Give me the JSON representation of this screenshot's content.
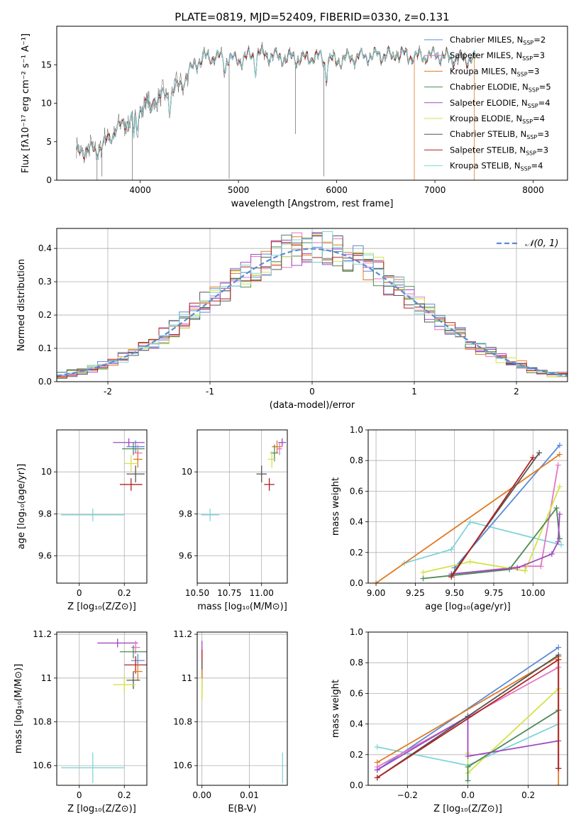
{
  "figure": {
    "title": "PLATE=0819, MJD=52409, FIBERID=0330, z=0.131"
  },
  "chart_data": [
    {
      "id": "spectrum",
      "type": "line",
      "title": "PLATE=0819, MJD=52409, FIBERID=0330, z=0.131",
      "xlabel": "wavelength [Angstrom, rest frame]",
      "ylabel": "Flux [fλ10⁻¹⁷ erg cm⁻² s⁻¹ A⁻¹]",
      "xlim": [
        3150,
        8350
      ],
      "ylim": [
        0,
        20
      ],
      "xticks": [
        4000,
        5000,
        6000,
        7000,
        8000
      ],
      "yticks": [
        0,
        5,
        10,
        15
      ],
      "grid": false,
      "legend_position": "top-right",
      "continuum": {
        "x": [
          3350,
          3450,
          3550,
          3650,
          3750,
          3850,
          3950,
          4050,
          4150,
          4250,
          4350,
          4450,
          4550,
          4650,
          4800,
          5000,
          5200,
          5400,
          5600,
          5800,
          6000,
          6200,
          6400,
          6600,
          6800,
          7000,
          7200,
          7400
        ],
        "y": [
          3.5,
          4.0,
          3.8,
          5.0,
          6.5,
          7.5,
          8.5,
          10.0,
          10.5,
          11.0,
          11.8,
          13.0,
          15.0,
          16.0,
          16.0,
          15.5,
          16.5,
          16.0,
          15.8,
          16.0,
          15.5,
          16.0,
          16.2,
          16.5,
          16.0,
          16.3,
          15.8,
          15.7
        ]
      },
      "series": [
        {
          "name": "Chabrier MILES, N_SSP=2",
          "color": "#5b8ad6"
        },
        {
          "name": "Salpeter MILES, N_SSP=3",
          "color": "#e377c2"
        },
        {
          "name": "Kroupa MILES, N_SSP=3",
          "color": "#e07b22"
        },
        {
          "name": "Chabrier ELODIE, N_SSP=5",
          "color": "#4d8a55"
        },
        {
          "name": "Salpeter ELODIE, N_SSP=4",
          "color": "#a04ac0"
        },
        {
          "name": "Kroupa ELODIE, N_SSP=4",
          "color": "#d6e14a"
        },
        {
          "name": "Chabrier STELIB, N_SSP=3",
          "color": "#555555"
        },
        {
          "name": "Salpeter STELIB, N_SSP=3",
          "color": "#b22222"
        },
        {
          "name": "Kroupa STELIB, N_SSP=4",
          "color": "#7fd4d8"
        }
      ]
    },
    {
      "id": "residuals",
      "type": "histogram",
      "xlabel": "(data-model)/error",
      "ylabel": "Normed distribution",
      "xlim": [
        -2.5,
        2.5
      ],
      "ylim": [
        0,
        0.46
      ],
      "xticks": [
        -2,
        -1,
        0,
        1,
        2
      ],
      "yticks": [
        0.0,
        0.1,
        0.2,
        0.3,
        0.4
      ],
      "grid": true,
      "bin_width": 0.1,
      "reference_curve": {
        "name": "𝒩(0, 1)",
        "mean": 0,
        "sigma": 1,
        "color": "#5b8ad6"
      },
      "legend_position": "top-right"
    },
    {
      "id": "age_vs_Z",
      "type": "scatter",
      "xlabel": "Z [log₁₀(Z/Z⊙)]",
      "ylabel": "age  [log₁₀(age/yr)]",
      "xlim": [
        -0.1,
        0.3
      ],
      "ylim": [
        9.47,
        10.2
      ],
      "xticks": [
        0.0,
        0.2
      ],
      "yticks": [
        9.6,
        9.8,
        10.0
      ],
      "grid": true,
      "points": [
        {
          "x": 0.06,
          "y": 9.795,
          "xerr": 0.14,
          "yerr": 0.03,
          "color": "#7fd4d8"
        },
        {
          "x": 0.22,
          "y": 10.14,
          "xerr": 0.07,
          "yerr": 0.02,
          "color": "#a04ac0"
        },
        {
          "x": 0.25,
          "y": 10.12,
          "xerr": 0.04,
          "yerr": 0.03,
          "color": "#5b8ad6"
        },
        {
          "x": 0.24,
          "y": 10.11,
          "xerr": 0.05,
          "yerr": 0.03,
          "color": "#4d8a55"
        },
        {
          "x": 0.26,
          "y": 10.09,
          "xerr": 0.02,
          "yerr": 0.04,
          "color": "#e377c2"
        },
        {
          "x": 0.26,
          "y": 10.06,
          "xerr": 0.02,
          "yerr": 0.04,
          "color": "#e07b22"
        },
        {
          "x": 0.23,
          "y": 10.04,
          "xerr": 0.03,
          "yerr": 0.04,
          "color": "#d6e14a"
        },
        {
          "x": 0.25,
          "y": 9.99,
          "xerr": 0.04,
          "yerr": 0.04,
          "color": "#555555"
        },
        {
          "x": 0.23,
          "y": 9.94,
          "xerr": 0.05,
          "yerr": 0.03,
          "color": "#b22222"
        }
      ]
    },
    {
      "id": "age_vs_mass",
      "type": "scatter",
      "xlabel": "mass [log₁₀(M/M⊙)]",
      "xlim": [
        10.5,
        11.2
      ],
      "ylim": [
        9.47,
        10.2
      ],
      "xticks": [
        10.5,
        10.75,
        11.0
      ],
      "xticklabels": [
        "10.50",
        "10.75",
        "11.00"
      ],
      "yticks": [
        9.6,
        9.8,
        10.0
      ],
      "grid": true,
      "points": [
        {
          "x": 10.6,
          "y": 9.795,
          "xerr": 0.07,
          "yerr": 0.03,
          "color": "#7fd4d8"
        },
        {
          "x": 11.16,
          "y": 10.14,
          "xerr": 0.03,
          "yerr": 0.02,
          "color": "#a04ac0"
        },
        {
          "x": 11.12,
          "y": 10.12,
          "xerr": 0.04,
          "yerr": 0.03,
          "color": "#e07b22"
        },
        {
          "x": 11.14,
          "y": 10.11,
          "xerr": 0.02,
          "yerr": 0.03,
          "color": "#e377c2"
        },
        {
          "x": 11.1,
          "y": 10.09,
          "xerr": 0.03,
          "yerr": 0.04,
          "color": "#4d8a55"
        },
        {
          "x": 11.08,
          "y": 10.06,
          "xerr": 0.03,
          "yerr": 0.04,
          "color": "#d6e14a"
        },
        {
          "x": 11.0,
          "y": 9.99,
          "xerr": 0.04,
          "yerr": 0.04,
          "color": "#555555"
        },
        {
          "x": 11.06,
          "y": 9.94,
          "xerr": 0.04,
          "yerr": 0.03,
          "color": "#b22222"
        }
      ]
    },
    {
      "id": "weight_vs_age",
      "type": "line",
      "xlabel": "age  [log₁₀(age/yr)]",
      "ylabel": "mass weight",
      "xlim": [
        8.95,
        10.22
      ],
      "ylim": [
        0,
        1
      ],
      "xticks": [
        9.0,
        9.25,
        9.5,
        9.75,
        10.0
      ],
      "xticklabels": [
        "9.00",
        "9.25",
        "9.50",
        "9.75",
        "10.00"
      ],
      "yticks": [
        0.0,
        0.2,
        0.4,
        0.6,
        0.8,
        1.0
      ],
      "grid": true,
      "series": [
        {
          "color": "#7fd4d8",
          "x": [
            9.18,
            9.48,
            9.6,
            10.18
          ],
          "y": [
            0.13,
            0.22,
            0.4,
            0.25
          ]
        },
        {
          "color": "#5b8ad6",
          "x": [
            9.5,
            10.17
          ],
          "y": [
            0.1,
            0.9
          ]
        },
        {
          "color": "#e07b22",
          "x": [
            9.0,
            10.17
          ],
          "y": [
            0.0,
            0.84
          ]
        },
        {
          "color": "#e377c2",
          "x": [
            9.5,
            9.95,
            10.05,
            10.16
          ],
          "y": [
            0.06,
            0.11,
            0.11,
            0.77
          ]
        },
        {
          "color": "#d6e14a",
          "x": [
            9.3,
            9.6,
            9.95,
            10.17
          ],
          "y": [
            0.07,
            0.14,
            0.08,
            0.63
          ]
        },
        {
          "color": "#4d8a55",
          "x": [
            9.3,
            9.85,
            10.15,
            10.17
          ],
          "y": [
            0.03,
            0.09,
            0.49,
            0.29
          ]
        },
        {
          "color": "#a04ac0",
          "x": [
            9.48,
            9.9,
            10.12,
            10.16,
            10.17
          ],
          "y": [
            0.06,
            0.1,
            0.19,
            0.27,
            0.45
          ]
        },
        {
          "color": "#555555",
          "x": [
            9.48,
            10.04
          ],
          "y": [
            0.05,
            0.85
          ]
        },
        {
          "color": "#b22222",
          "x": [
            9.48,
            10.0
          ],
          "y": [
            0.04,
            0.82
          ]
        }
      ]
    },
    {
      "id": "mass_vs_Z",
      "type": "scatter",
      "xlabel": "Z [log₁₀(Z/Z⊙)]",
      "ylabel": "mass [log₁₀(M/M⊙)]",
      "xlim": [
        -0.1,
        0.3
      ],
      "ylim": [
        10.51,
        11.21
      ],
      "xticks": [
        0.0,
        0.2
      ],
      "yticks": [
        10.6,
        10.8,
        11.0,
        11.2
      ],
      "grid": true,
      "points": [
        {
          "x": 0.06,
          "y": 10.59,
          "xerr": 0.14,
          "yerr": 0.07,
          "color": "#7fd4d8"
        },
        {
          "x": 0.17,
          "y": 11.16,
          "xerr": 0.09,
          "yerr": 0.02,
          "color": "#a04ac0"
        },
        {
          "x": 0.25,
          "y": 11.14,
          "xerr": 0.02,
          "yerr": 0.03,
          "color": "#e377c2"
        },
        {
          "x": 0.24,
          "y": 11.12,
          "xerr": 0.06,
          "yerr": 0.03,
          "color": "#4d8a55"
        },
        {
          "x": 0.26,
          "y": 11.08,
          "xerr": 0.03,
          "yerr": 0.03,
          "color": "#5b8ad6"
        },
        {
          "x": 0.25,
          "y": 11.06,
          "xerr": 0.05,
          "yerr": 0.04,
          "color": "#b22222"
        },
        {
          "x": 0.26,
          "y": 11.03,
          "xerr": 0.02,
          "yerr": 0.04,
          "color": "#e07b22"
        },
        {
          "x": 0.24,
          "y": 10.99,
          "xerr": 0.03,
          "yerr": 0.04,
          "color": "#555555"
        },
        {
          "x": 0.2,
          "y": 10.97,
          "xerr": 0.05,
          "yerr": 0.04,
          "color": "#d6e14a"
        }
      ]
    },
    {
      "id": "mass_vs_EBV",
      "type": "scatter",
      "xlabel": "E(B-V)",
      "xlim": [
        -0.001,
        0.018
      ],
      "ylim": [
        10.51,
        11.21
      ],
      "xticks": [
        0.0,
        0.01
      ],
      "xticklabels": [
        "0.00",
        "0.01"
      ],
      "yticks": [
        10.6,
        10.8,
        11.0,
        11.2
      ],
      "grid": true,
      "points": [
        {
          "x": 0.017,
          "y": 10.59,
          "xerr": 0.0,
          "yerr": 0.07,
          "color": "#7fd4d8"
        },
        {
          "x": 0.0,
          "y": 11.12,
          "xerr": 0.0,
          "yerr": 0.05,
          "color": "#a04ac0"
        },
        {
          "x": 0.0,
          "y": 11.06,
          "xerr": 0.0,
          "yerr": 0.07,
          "color": "#b22222"
        },
        {
          "x": 0.0,
          "y": 11.02,
          "xerr": 0.0,
          "yerr": 0.06,
          "color": "#555555"
        },
        {
          "x": 0.0,
          "y": 10.97,
          "xerr": 0.0,
          "yerr": 0.07,
          "color": "#e07b22"
        },
        {
          "x": 0.0,
          "y": 10.95,
          "xerr": 0.0,
          "yerr": 0.05,
          "color": "#d6e14a"
        }
      ]
    },
    {
      "id": "weight_vs_Z",
      "type": "line",
      "xlabel": "Z [log₁₀(Z/Z⊙)]",
      "ylabel": "mass weight",
      "xlim": [
        -0.33,
        0.33
      ],
      "ylim": [
        0,
        1
      ],
      "xticks": [
        -0.2,
        0.0,
        0.2
      ],
      "xticklabels": [
        "−0.2",
        "0.0",
        "0.2"
      ],
      "yticks": [
        0.0,
        0.2,
        0.4,
        0.6,
        0.8,
        1.0
      ],
      "grid": true,
      "series": [
        {
          "color": "#7fd4d8",
          "x": [
            -0.3,
            0.0,
            0.3
          ],
          "y": [
            0.25,
            0.13,
            0.4
          ]
        },
        {
          "color": "#5b8ad6",
          "x": [
            -0.3,
            0.3
          ],
          "y": [
            0.1,
            0.9
          ]
        },
        {
          "color": "#e07b22",
          "x": [
            -0.3,
            0.3,
            0.3
          ],
          "y": [
            0.15,
            0.84,
            0.0
          ]
        },
        {
          "color": "#e377c2",
          "x": [
            -0.3,
            0.3
          ],
          "y": [
            0.12,
            0.77
          ]
        },
        {
          "color": "#d6e14a",
          "x": [
            0.0,
            0.0,
            0.3
          ],
          "y": [
            0.21,
            0.08,
            0.63
          ]
        },
        {
          "color": "#4d8a55",
          "x": [
            0.0,
            0.0,
            0.3
          ],
          "y": [
            0.03,
            0.12,
            0.49
          ]
        },
        {
          "color": "#a04ac0",
          "x": [
            -0.3,
            0.0,
            0.0,
            0.3
          ],
          "y": [
            0.1,
            0.45,
            0.19,
            0.29
          ]
        },
        {
          "color": "#555555",
          "x": [
            -0.3,
            0.0,
            0.3,
            0.3
          ],
          "y": [
            0.05,
            0.45,
            0.85,
            0.11
          ]
        },
        {
          "color": "#b22222",
          "x": [
            -0.3,
            0.3,
            0.3
          ],
          "y": [
            0.05,
            0.82,
            0.11
          ]
        }
      ]
    }
  ]
}
